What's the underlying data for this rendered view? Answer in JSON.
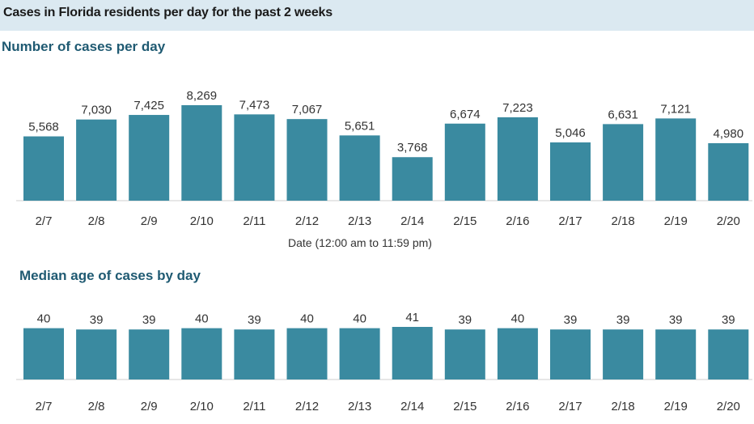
{
  "header": {
    "title": "Cases in Florida residents per day for the past 2 weeks"
  },
  "colors": {
    "bar": "#3a8aa0",
    "header_bg": "#dbe9f1",
    "title": "#1f5a72"
  },
  "chart_data": [
    {
      "type": "bar",
      "title": "Number of cases per day",
      "xlabel": "Date (12:00 am to 11:59 pm)",
      "ylabel": "",
      "ylim": [
        0,
        9000
      ],
      "categories": [
        "2/7",
        "2/8",
        "2/9",
        "2/10",
        "2/11",
        "2/12",
        "2/13",
        "2/14",
        "2/15",
        "2/16",
        "2/17",
        "2/18",
        "2/19",
        "2/20"
      ],
      "values": [
        5568,
        7030,
        7425,
        8269,
        7473,
        7067,
        5651,
        3768,
        6674,
        7223,
        5046,
        6631,
        7121,
        4980
      ],
      "value_labels": [
        "5,568",
        "7,030",
        "7,425",
        "8,269",
        "7,473",
        "7,067",
        "5,651",
        "3,768",
        "6,674",
        "7,223",
        "5,046",
        "6,631",
        "7,121",
        "4,980"
      ],
      "grid": false
    },
    {
      "type": "bar",
      "title": "Median age of cases by day",
      "xlabel": "",
      "ylabel": "",
      "categories": [
        "2/7",
        "2/8",
        "2/9",
        "2/10",
        "2/11",
        "2/12",
        "2/13",
        "2/14",
        "2/15",
        "2/16",
        "2/17",
        "2/18",
        "2/19",
        "2/20"
      ],
      "values": [
        40,
        39,
        39,
        40,
        39,
        40,
        40,
        41,
        39,
        40,
        39,
        39,
        39,
        39
      ],
      "value_labels": [
        "40",
        "39",
        "39",
        "40",
        "39",
        "40",
        "40",
        "41",
        "39",
        "40",
        "39",
        "39",
        "39",
        "39"
      ],
      "grid": false
    }
  ]
}
